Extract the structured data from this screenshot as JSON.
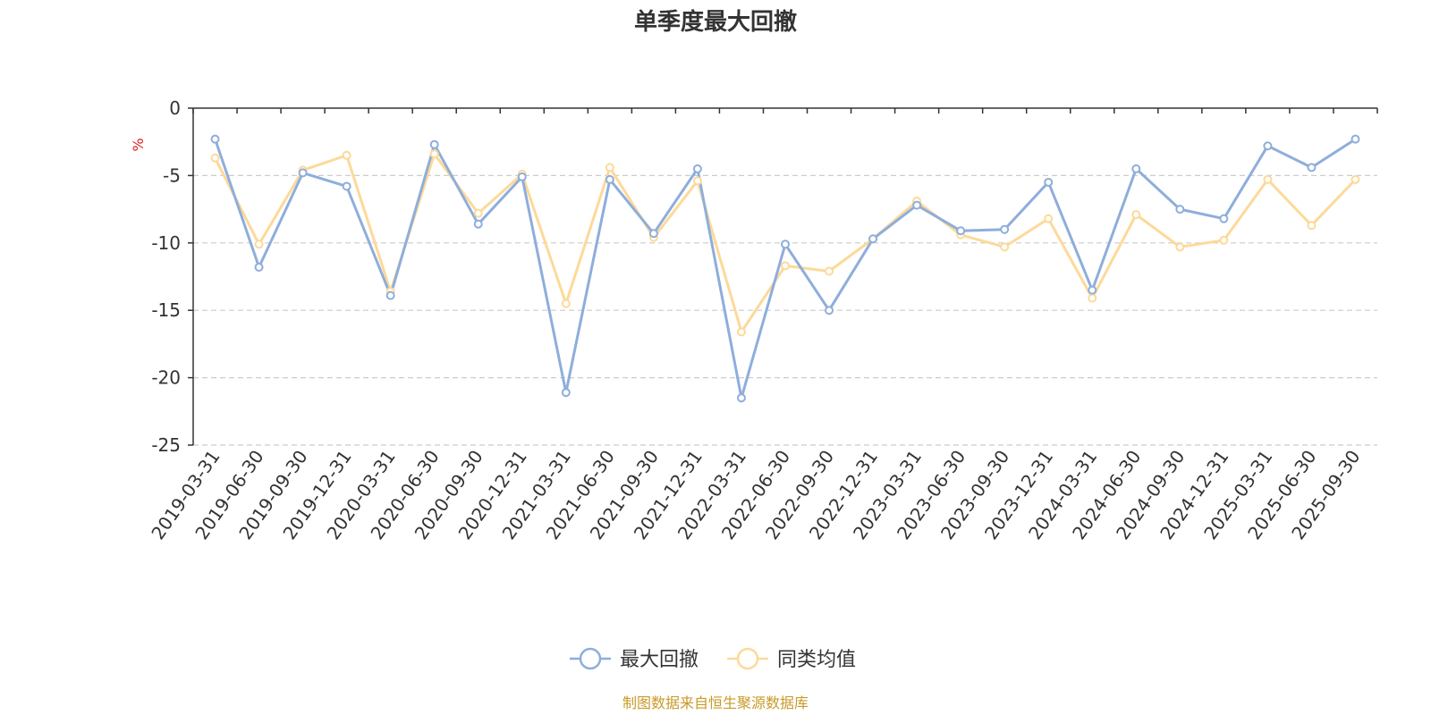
{
  "chart_data": {
    "type": "line",
    "title": "单季度最大回撤",
    "unit": "%",
    "x": [
      "2019-03-31",
      "2019-06-30",
      "2019-09-30",
      "2019-12-31",
      "2020-03-31",
      "2020-06-30",
      "2020-09-30",
      "2020-12-31",
      "2021-03-31",
      "2021-06-30",
      "2021-09-30",
      "2021-12-31",
      "2022-03-31",
      "2022-06-30",
      "2022-09-30",
      "2022-12-31",
      "2023-03-31",
      "2023-06-30",
      "2023-09-30",
      "2023-12-31",
      "2024-03-31",
      "2024-06-30",
      "2024-09-30",
      "2024-12-31",
      "2025-03-31",
      "2025-06-30",
      "2025-09-30"
    ],
    "ylim": [
      -25,
      0
    ],
    "yticks": [
      0,
      -5,
      -10,
      -15,
      -20,
      -25
    ],
    "grid": true,
    "legend_position": "bottom-center",
    "series": [
      {
        "name": "最大回撤",
        "color": "#8eaedb",
        "values": [
          -2.3,
          -11.8,
          -4.8,
          -5.8,
          -13.9,
          -2.7,
          -8.6,
          -5.1,
          -21.1,
          -5.3,
          -9.3,
          -4.5,
          -21.5,
          -10.1,
          -15.0,
          -9.7,
          -7.2,
          -9.1,
          -9.0,
          -5.5,
          -13.5,
          -4.5,
          -7.5,
          -8.2,
          -2.8,
          -4.4,
          -2.3
        ]
      },
      {
        "name": "同类均值",
        "color": "#fdd999",
        "values": [
          -3.7,
          -10.1,
          -4.6,
          -3.5,
          -13.6,
          -3.4,
          -7.8,
          -4.9,
          -14.5,
          -4.4,
          -9.6,
          -5.4,
          -16.6,
          -11.7,
          -12.1,
          -9.7,
          -6.9,
          -9.4,
          -10.3,
          -8.2,
          -14.1,
          -7.9,
          -10.3,
          -9.8,
          -5.3,
          -8.7,
          -5.3
        ]
      }
    ]
  },
  "source_note": "制图数据来自恒生聚源数据库",
  "colors": {
    "unit": "#e01f1f",
    "source": "#c89a28",
    "axis": "#333333",
    "grid": "#cccccc"
  }
}
